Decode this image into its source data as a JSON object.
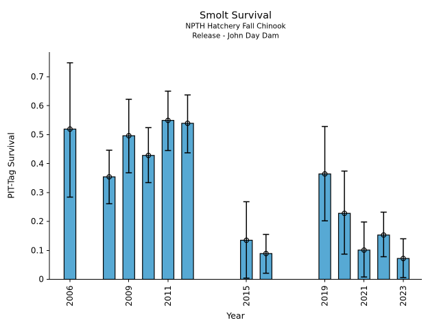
{
  "chart_data": {
    "type": "bar",
    "title": "Smolt Survival",
    "subtitle_lines": [
      "NPTH Hatchery Fall Chinook",
      "Release - John Day Dam"
    ],
    "xlabel": "Year",
    "ylabel": "PIT-Tag Survival",
    "xlim": [
      2004.95,
      2023.95
    ],
    "ylim": [
      0,
      0.785
    ],
    "grid": false,
    "legend": false,
    "ytick_values": [
      0,
      0.1,
      0.2,
      0.3,
      0.4,
      0.5,
      0.6,
      0.7
    ],
    "ytick_labels": [
      "0",
      "0.1",
      "0.2",
      "0.3",
      "0.4",
      "0.5",
      "0.6",
      "0.7"
    ],
    "xtick_years": [
      2006,
      2009,
      2011,
      2015,
      2019,
      2021,
      2023
    ],
    "xtick_labels": [
      "2006",
      "2009",
      "2011",
      "2015",
      "2019",
      "2021",
      "2023"
    ],
    "xtick_rotation_deg": 90,
    "bar": {
      "color": "#57A9D4",
      "edge_color": "#000000",
      "width_years": 0.6
    },
    "errorbar": {
      "color": "#000000",
      "marker": "open-circle",
      "description": "95% CI whiskers with caps, open circle marker at bar top"
    },
    "series": [
      {
        "name": "PIT-Tag Survival",
        "points": [
          {
            "year": 2006,
            "value": 0.519,
            "ci_low": 0.284,
            "ci_high": 0.748
          },
          {
            "year": 2008,
            "value": 0.354,
            "ci_low": 0.261,
            "ci_high": 0.446
          },
          {
            "year": 2009,
            "value": 0.496,
            "ci_low": 0.368,
            "ci_high": 0.622
          },
          {
            "year": 2010,
            "value": 0.428,
            "ci_low": 0.334,
            "ci_high": 0.524
          },
          {
            "year": 2011,
            "value": 0.549,
            "ci_low": 0.445,
            "ci_high": 0.65
          },
          {
            "year": 2012,
            "value": 0.539,
            "ci_low": 0.437,
            "ci_high": 0.637
          },
          {
            "year": 2015,
            "value": 0.135,
            "ci_low": 0.004,
            "ci_high": 0.268
          },
          {
            "year": 2016,
            "value": 0.089,
            "ci_low": 0.021,
            "ci_high": 0.155
          },
          {
            "year": 2019,
            "value": 0.364,
            "ci_low": 0.202,
            "ci_high": 0.528
          },
          {
            "year": 2020,
            "value": 0.228,
            "ci_low": 0.087,
            "ci_high": 0.374
          },
          {
            "year": 2021,
            "value": 0.101,
            "ci_low": 0.008,
            "ci_high": 0.198
          },
          {
            "year": 2022,
            "value": 0.153,
            "ci_low": 0.078,
            "ci_high": 0.232
          },
          {
            "year": 2023,
            "value": 0.072,
            "ci_low": 0.006,
            "ci_high": 0.14
          }
        ]
      }
    ]
  }
}
